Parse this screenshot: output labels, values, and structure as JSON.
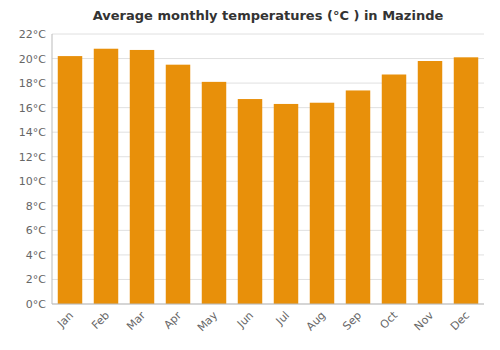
{
  "chart_data": {
    "type": "bar",
    "title": "Average monthly temperatures (°C ) in Mazinde",
    "categories": [
      "Jan",
      "Feb",
      "Mar",
      "Apr",
      "May",
      "Jun",
      "Jul",
      "Aug",
      "Sep",
      "Oct",
      "Nov",
      "Dec"
    ],
    "values": [
      20.2,
      20.8,
      20.7,
      19.5,
      18.1,
      16.7,
      16.3,
      16.4,
      17.4,
      18.7,
      19.8,
      20.1
    ],
    "color": "#E8900A",
    "ylim": [
      0,
      22
    ],
    "yticks": [
      {
        "value": 0,
        "label": "0°C"
      },
      {
        "value": 2,
        "label": "2°C"
      },
      {
        "value": 4,
        "label": "4°C"
      },
      {
        "value": 6,
        "label": "6°C"
      },
      {
        "value": 8,
        "label": "8°C"
      },
      {
        "value": 10,
        "label": "10°C"
      },
      {
        "value": 12,
        "label": "12°C"
      },
      {
        "value": 14,
        "label": "14°C"
      },
      {
        "value": 16,
        "label": "16°C"
      },
      {
        "value": 18,
        "label": "18°C"
      },
      {
        "value": 20,
        "label": "20°C"
      },
      {
        "value": 22,
        "label": "22°C"
      }
    ],
    "grid": true
  }
}
